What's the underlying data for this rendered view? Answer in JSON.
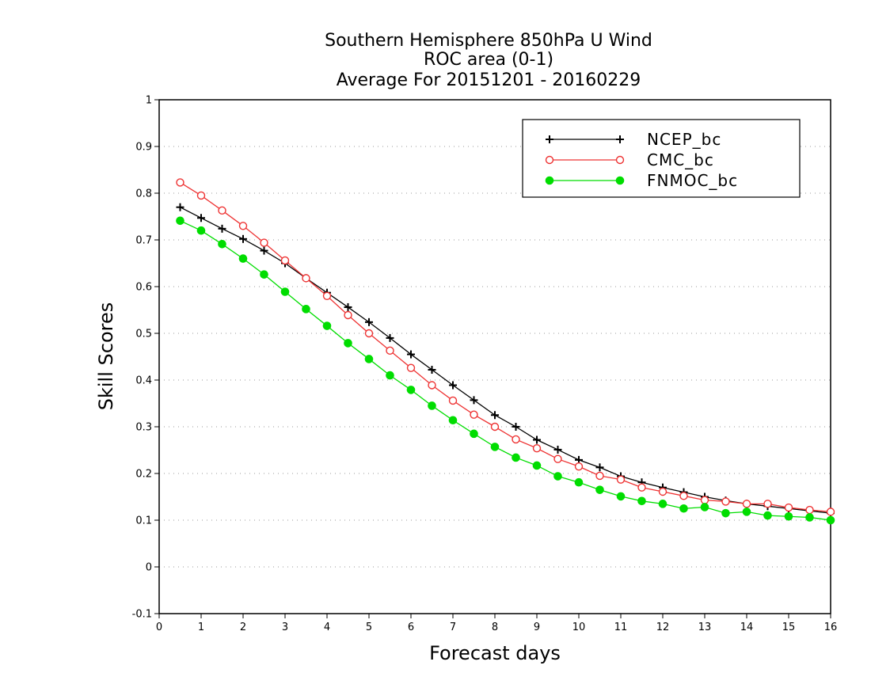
{
  "chart_data": {
    "type": "line",
    "title": [
      "Southern Hemisphere 850hPa U Wind",
      "ROC area (0-1)",
      "Average For 20151201 - 20160229"
    ],
    "xlabel": "Forecast days",
    "ylabel": "Skill Scores",
    "xlim": [
      0,
      16
    ],
    "ylim": [
      -0.1,
      1
    ],
    "xticks": [
      0,
      1,
      2,
      3,
      4,
      5,
      6,
      7,
      8,
      9,
      10,
      11,
      12,
      13,
      14,
      15,
      16
    ],
    "yticks": [
      -0.1,
      0,
      0.1,
      0.2,
      0.3,
      0.4,
      0.5,
      0.6,
      0.7,
      0.8,
      0.9,
      1
    ],
    "ytick_labels": [
      "-0.1",
      "0",
      "0.1",
      "0.2",
      "0.3",
      "0.4",
      "0.5",
      "0.6",
      "0.7",
      "0.8",
      "0.9",
      "1"
    ],
    "grid": "horizontal dotted",
    "legend_position": "top-right",
    "x": [
      0.5,
      1,
      1.5,
      2,
      2.5,
      3,
      3.5,
      4,
      4.5,
      5,
      5.5,
      6,
      6.5,
      7,
      7.5,
      8,
      8.5,
      9,
      9.5,
      10,
      10.5,
      11,
      11.5,
      12,
      12.5,
      13,
      13.5,
      14,
      14.5,
      15,
      15.5,
      16
    ],
    "series": [
      {
        "name": "NCEP_bc",
        "color": "#000000",
        "marker": "plus",
        "values": [
          0.77,
          0.747,
          0.724,
          0.702,
          0.677,
          0.65,
          0.618,
          0.587,
          0.556,
          0.524,
          0.49,
          0.455,
          0.422,
          0.389,
          0.357,
          0.325,
          0.3,
          0.272,
          0.251,
          0.229,
          0.213,
          0.194,
          0.181,
          0.17,
          0.16,
          0.15,
          0.142,
          0.135,
          0.13,
          0.125,
          0.12,
          0.115
        ]
      },
      {
        "name": "CMC_bc",
        "color": "#ee3333",
        "marker": "open-circle",
        "values": [
          0.823,
          0.795,
          0.763,
          0.73,
          0.694,
          0.656,
          0.618,
          0.58,
          0.539,
          0.5,
          0.463,
          0.426,
          0.389,
          0.356,
          0.326,
          0.3,
          0.273,
          0.254,
          0.231,
          0.215,
          0.195,
          0.187,
          0.17,
          0.161,
          0.152,
          0.143,
          0.14,
          0.135,
          0.135,
          0.127,
          0.122,
          0.118
        ]
      },
      {
        "name": "FNMOC_bc",
        "color": "#00dd00",
        "marker": "filled-circle",
        "values": [
          0.741,
          0.72,
          0.691,
          0.66,
          0.626,
          0.589,
          0.552,
          0.516,
          0.479,
          0.445,
          0.41,
          0.379,
          0.345,
          0.314,
          0.285,
          0.257,
          0.234,
          0.217,
          0.194,
          0.181,
          0.165,
          0.151,
          0.141,
          0.135,
          0.125,
          0.128,
          0.115,
          0.118,
          0.11,
          0.108,
          0.106,
          0.1
        ]
      }
    ]
  }
}
